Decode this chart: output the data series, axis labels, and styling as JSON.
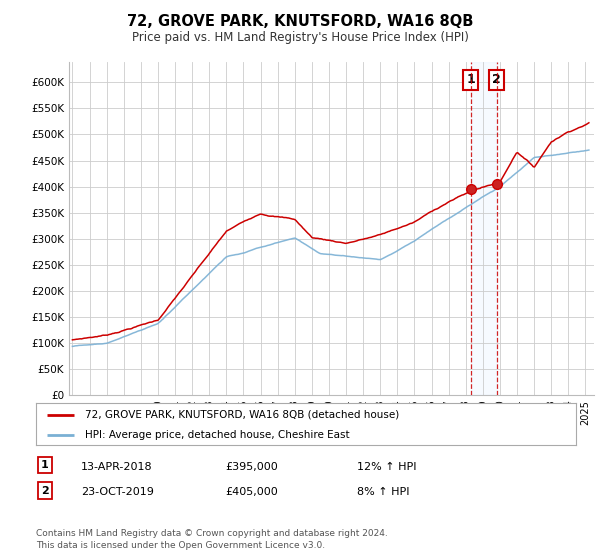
{
  "title": "72, GROVE PARK, KNUTSFORD, WA16 8QB",
  "subtitle": "Price paid vs. HM Land Registry's House Price Index (HPI)",
  "ylabel_ticks": [
    "£0",
    "£50K",
    "£100K",
    "£150K",
    "£200K",
    "£250K",
    "£300K",
    "£350K",
    "£400K",
    "£450K",
    "£500K",
    "£550K",
    "£600K"
  ],
  "ytick_values": [
    0,
    50000,
    100000,
    150000,
    200000,
    250000,
    300000,
    350000,
    400000,
    450000,
    500000,
    550000,
    600000
  ],
  "ylim": [
    0,
    640000
  ],
  "xlim_start": 1994.8,
  "xlim_end": 2025.5,
  "red_color": "#cc0000",
  "blue_color": "#7ab0d4",
  "shade_color": "#ddeeff",
  "legend_label_red": "72, GROVE PARK, KNUTSFORD, WA16 8QB (detached house)",
  "legend_label_blue": "HPI: Average price, detached house, Cheshire East",
  "transaction1_date": "13-APR-2018",
  "transaction1_price": "£395,000",
  "transaction1_hpi": "12% ↑ HPI",
  "transaction2_date": "23-OCT-2019",
  "transaction2_price": "£405,000",
  "transaction2_hpi": "8% ↑ HPI",
  "footer": "Contains HM Land Registry data © Crown copyright and database right 2024.\nThis data is licensed under the Open Government Licence v3.0.",
  "transaction1_x": 2018.28,
  "transaction1_y": 395000,
  "transaction2_x": 2019.81,
  "transaction2_y": 405000
}
